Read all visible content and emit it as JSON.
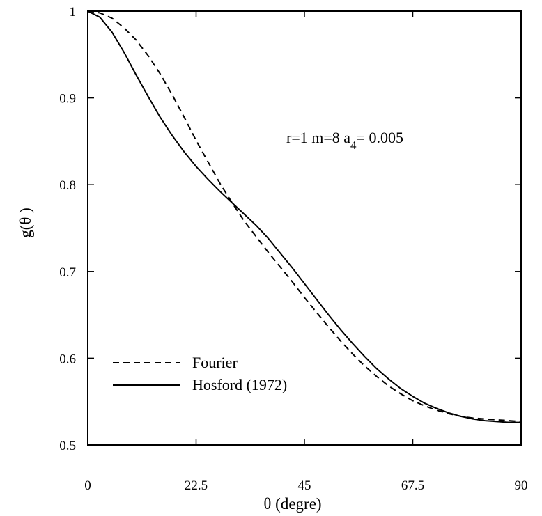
{
  "chart_data": {
    "type": "line",
    "xlabel": "θ (degre)",
    "ylabel": "g(θ )",
    "xlim": [
      0,
      90
    ],
    "ylim": [
      0.5,
      1
    ],
    "x_ticks": [
      0,
      22.5,
      45,
      67.5,
      90
    ],
    "x_tick_labels": [
      "0",
      "22.5",
      "45",
      "67.5",
      "90"
    ],
    "y_ticks": [
      0.5,
      0.6,
      0.7,
      0.8,
      0.9,
      1
    ],
    "y_tick_labels": [
      "0.5",
      "0.6",
      "0.7",
      "0.8",
      "0.9",
      "1"
    ],
    "annotation": {
      "prefix": "r=1  m=8   a",
      "subscript": "4",
      "suffix": "= 0.005"
    },
    "legend_position": "lower-left",
    "grid": false,
    "series": [
      {
        "name": "Fourier",
        "style": "dashed",
        "x": [
          0,
          2.5,
          5,
          7.5,
          10,
          12.5,
          15,
          17.5,
          20,
          22.5,
          25,
          27.5,
          30,
          32.5,
          35,
          37.5,
          40,
          42.5,
          45,
          47.5,
          50,
          52.5,
          55,
          57.5,
          60,
          62.5,
          65,
          67.5,
          70,
          72.5,
          75,
          77.5,
          80,
          82.5,
          85,
          87.5,
          90
        ],
        "y": [
          1.0,
          0.998,
          0.992,
          0.981,
          0.967,
          0.949,
          0.928,
          0.904,
          0.878,
          0.851,
          0.826,
          0.801,
          0.779,
          0.758,
          0.74,
          0.722,
          0.705,
          0.688,
          0.67,
          0.653,
          0.636,
          0.62,
          0.605,
          0.591,
          0.579,
          0.568,
          0.559,
          0.551,
          0.545,
          0.54,
          0.536,
          0.533,
          0.531,
          0.53,
          0.529,
          0.528,
          0.527
        ]
      },
      {
        "name": "Hosford (1972)",
        "style": "solid",
        "x": [
          0,
          2.5,
          5,
          7.5,
          10,
          12.5,
          15,
          17.5,
          20,
          22.5,
          25,
          27.5,
          30,
          32.5,
          35,
          37.5,
          40,
          42.5,
          45,
          47.5,
          50,
          52.5,
          55,
          57.5,
          60,
          62.5,
          65,
          67.5,
          70,
          72.5,
          75,
          77.5,
          80,
          82.5,
          85,
          87.5,
          90
        ],
        "y": [
          1.0,
          0.993,
          0.976,
          0.953,
          0.927,
          0.902,
          0.878,
          0.857,
          0.838,
          0.821,
          0.806,
          0.792,
          0.779,
          0.766,
          0.753,
          0.738,
          0.721,
          0.704,
          0.686,
          0.668,
          0.65,
          0.633,
          0.617,
          0.602,
          0.588,
          0.576,
          0.565,
          0.556,
          0.548,
          0.542,
          0.537,
          0.533,
          0.53,
          0.528,
          0.527,
          0.526,
          0.526
        ]
      }
    ]
  }
}
